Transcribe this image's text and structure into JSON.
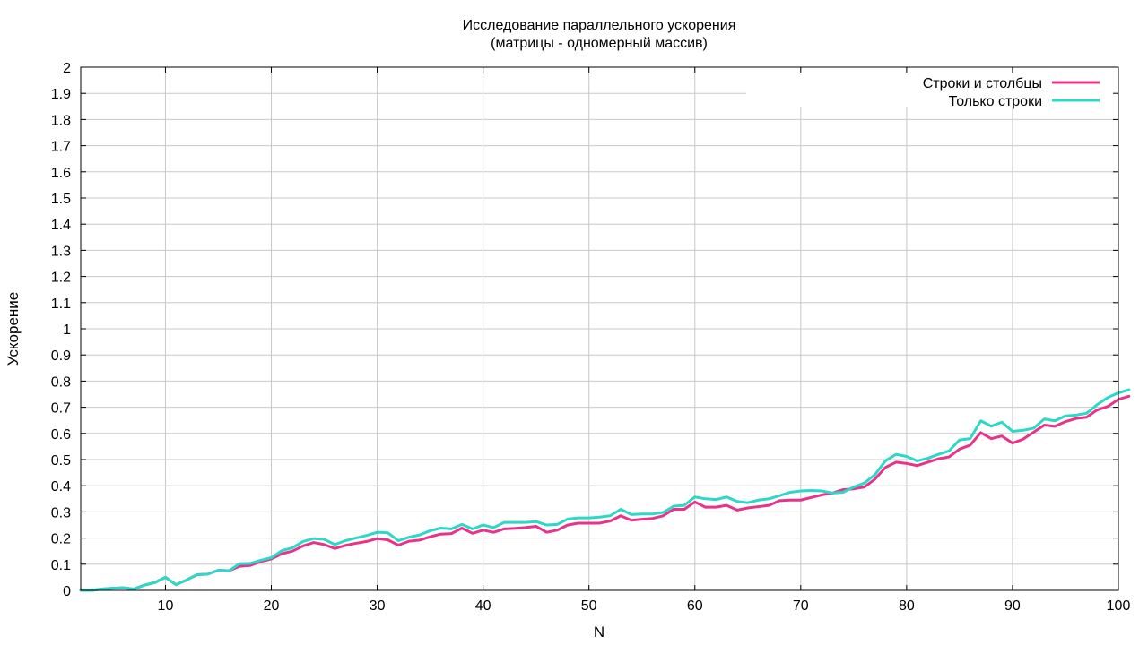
{
  "chart_data": {
    "type": "line",
    "title": "Исследование параллельного ускорения",
    "subtitle": "(матрицы - одномерный массив)",
    "xlabel": "N",
    "ylabel": "Ускорение",
    "xlim": [
      2,
      100
    ],
    "ylim": [
      0,
      2
    ],
    "grid": true,
    "legend_position": "top-right",
    "x_ticks": [
      "10",
      "20",
      "30",
      "40",
      "50",
      "60",
      "70",
      "80",
      "90",
      "100"
    ],
    "y_ticks": [
      "0",
      "0.1",
      "0.2",
      "0.3",
      "0.4",
      "0.5",
      "0.6",
      "0.7",
      "0.8",
      "0.9",
      "1",
      "1.1",
      "1.2",
      "1.3",
      "1.4",
      "1.5",
      "1.6",
      "1.7",
      "1.8",
      "1.9",
      "2"
    ],
    "x_start": 2,
    "x_step": 1,
    "series": [
      {
        "name": "Строки и столбцы",
        "color": "#e8338a",
        "values": [
          0.0,
          0.0,
          0.005,
          0.008,
          0.01,
          0.005,
          0.02,
          0.03,
          0.05,
          0.022,
          0.04,
          0.06,
          0.062,
          0.077,
          0.075,
          0.092,
          0.095,
          0.11,
          0.12,
          0.14,
          0.15,
          0.17,
          0.183,
          0.175,
          0.16,
          0.172,
          0.18,
          0.187,
          0.198,
          0.193,
          0.173,
          0.188,
          0.192,
          0.205,
          0.215,
          0.217,
          0.238,
          0.218,
          0.23,
          0.222,
          0.235,
          0.237,
          0.24,
          0.245,
          0.222,
          0.23,
          0.25,
          0.257,
          0.257,
          0.257,
          0.265,
          0.285,
          0.268,
          0.272,
          0.275,
          0.285,
          0.31,
          0.31,
          0.338,
          0.318,
          0.318,
          0.325,
          0.307,
          0.315,
          0.32,
          0.325,
          0.343,
          0.345,
          0.345,
          0.355,
          0.365,
          0.372,
          0.385,
          0.388,
          0.395,
          0.425,
          0.47,
          0.49,
          0.485,
          0.477,
          0.49,
          0.503,
          0.51,
          0.54,
          0.555,
          0.603,
          0.58,
          0.59,
          0.563,
          0.578,
          0.605,
          0.632,
          0.627,
          0.645,
          0.657,
          0.662,
          0.69,
          0.703,
          0.73,
          0.742
        ]
      },
      {
        "name": "Только строки",
        "color": "#2dd8c8",
        "values": [
          0.0,
          0.0,
          0.005,
          0.008,
          0.01,
          0.005,
          0.02,
          0.03,
          0.05,
          0.022,
          0.04,
          0.06,
          0.062,
          0.077,
          0.075,
          0.102,
          0.103,
          0.115,
          0.125,
          0.152,
          0.163,
          0.187,
          0.198,
          0.195,
          0.175,
          0.19,
          0.2,
          0.21,
          0.222,
          0.22,
          0.19,
          0.203,
          0.212,
          0.228,
          0.238,
          0.235,
          0.252,
          0.235,
          0.25,
          0.24,
          0.26,
          0.26,
          0.26,
          0.263,
          0.25,
          0.252,
          0.273,
          0.277,
          0.277,
          0.28,
          0.285,
          0.31,
          0.29,
          0.292,
          0.292,
          0.298,
          0.322,
          0.325,
          0.357,
          0.35,
          0.347,
          0.357,
          0.34,
          0.335,
          0.345,
          0.35,
          0.362,
          0.375,
          0.38,
          0.382,
          0.38,
          0.372,
          0.375,
          0.395,
          0.41,
          0.442,
          0.495,
          0.52,
          0.512,
          0.495,
          0.505,
          0.52,
          0.533,
          0.575,
          0.58,
          0.648,
          0.628,
          0.643,
          0.608,
          0.612,
          0.62,
          0.655,
          0.648,
          0.667,
          0.67,
          0.677,
          0.71,
          0.737,
          0.755,
          0.767
        ]
      }
    ]
  }
}
